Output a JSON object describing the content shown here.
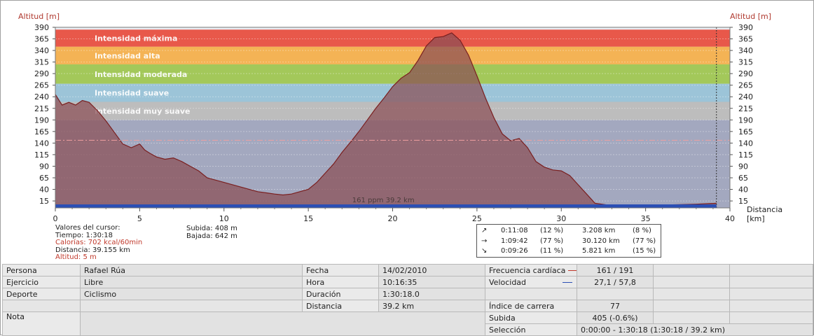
{
  "chart_data": {
    "type": "area",
    "y_axis_title_left": "Altitud [m]",
    "y_axis_title_right": "Altitud [m]",
    "x_axis_title": "Distancia\n[km]",
    "xlim": [
      0,
      40
    ],
    "ylim": [
      0,
      390
    ],
    "x_ticks": [
      0,
      5,
      10,
      15,
      20,
      25,
      30,
      35,
      40
    ],
    "y_ticks": [
      15,
      40,
      65,
      90,
      115,
      140,
      165,
      190,
      215,
      240,
      265,
      290,
      315,
      340,
      365,
      390
    ],
    "zones": [
      {
        "label": "Intensidad máxima",
        "from": 348,
        "to": 385,
        "color": "#e8584a"
      },
      {
        "label": "Intensidad alta",
        "from": 310,
        "to": 348,
        "color": "#f4b355"
      },
      {
        "label": "Intensidad moderada",
        "from": 268,
        "to": 310,
        "color": "#a3c85a"
      },
      {
        "label": "Intensidad suave",
        "from": 229,
        "to": 268,
        "color": "#9cc4d8"
      },
      {
        "label": "Intensidad muy suave",
        "from": 190,
        "to": 229,
        "color": "#bdbdbd"
      }
    ],
    "below_zone_color": "#a3a8bf",
    "avg_hr_line_value": 146,
    "hr_annotation": "161 ppm 39.2 km",
    "series": [
      {
        "x": [
          0,
          0.4,
          0.8,
          1.2,
          1.6,
          2.0,
          2.5,
          3.0,
          3.5,
          4.0,
          4.5,
          5.0,
          5.3,
          5.6,
          6.0,
          6.5,
          7.0,
          7.5,
          8.0,
          8.5,
          9.0,
          10.0,
          11.0,
          12.0,
          13.0,
          13.5,
          14.0,
          14.5,
          15.0,
          15.5,
          16.0,
          16.5,
          17.0,
          17.5,
          18.0,
          18.5,
          19.0,
          19.5,
          20.0,
          20.5,
          21.0,
          21.5,
          22.0,
          22.5,
          23.0,
          23.5,
          24.0,
          24.5,
          25.0,
          25.5,
          26.0,
          26.5,
          27.0,
          27.5,
          28.0,
          28.5,
          29.0,
          29.5,
          30.0,
          30.5,
          31.0,
          31.5,
          32.0,
          33.0,
          34.0,
          35.0,
          36.0,
          37.0,
          38.0,
          39.2
        ],
        "y": [
          245,
          222,
          228,
          222,
          232,
          228,
          210,
          188,
          163,
          138,
          130,
          138,
          125,
          118,
          110,
          105,
          108,
          100,
          90,
          80,
          65,
          55,
          45,
          35,
          30,
          28,
          30,
          35,
          40,
          55,
          75,
          95,
          120,
          142,
          165,
          190,
          215,
          238,
          262,
          280,
          292,
          318,
          350,
          368,
          370,
          378,
          362,
          330,
          285,
          238,
          195,
          160,
          145,
          150,
          130,
          100,
          88,
          82,
          80,
          70,
          50,
          30,
          10,
          5,
          4,
          5,
          6,
          7,
          8,
          10
        ]
      }
    ]
  },
  "cursor": {
    "title": "Valores del cursor:",
    "time": "Tiempo: 1:30:18",
    "calories": "Calorías: 702 kcal/60min",
    "distance": "Distancia: 39.155 km",
    "altitude": "Altitud: 5 m"
  },
  "climb": {
    "up": "Subida: 408 m",
    "down": "Bajada: 642 m"
  },
  "stats": [
    {
      "icon": "arrow-up-right-icon",
      "glyph": "↗",
      "time": "0:11:08",
      "pct1": "(12 %)",
      "dist": "3.208 km",
      "pct2": "(8 %)"
    },
    {
      "icon": "arrow-right-icon",
      "glyph": "→",
      "time": "1:09:42",
      "pct1": "(77 %)",
      "dist": "30.120 km",
      "pct2": "(77 %)"
    },
    {
      "icon": "arrow-down-right-icon",
      "glyph": "↘",
      "time": "0:09:26",
      "pct1": "(11 %)",
      "dist": "5.821 km",
      "pct2": "(15 %)"
    }
  ],
  "info": {
    "persona_label": "Persona",
    "persona": "Rafael Rúa",
    "ejercicio_label": "Ejercicio",
    "ejercicio": "Libre",
    "deporte_label": "Deporte",
    "deporte": "Ciclismo",
    "nota_label": "Nota",
    "fecha_label": "Fecha",
    "fecha": "14/02/2010",
    "hora_label": "Hora",
    "hora": "10:16:35",
    "duracion_label": "Duración",
    "duracion": "1:30:18.0",
    "distancia_label": "Distancia",
    "distancia": "39.2 km",
    "fc_label": "Frecuencia cardíaca",
    "fc": "161 / 191",
    "fc_color": "#c0392b",
    "vel_label": "Velocidad",
    "vel": "27,1 / 57,8",
    "vel_color": "#2b4fb5",
    "indice_label": "Índice de carrera",
    "indice": "77",
    "subida_label": "Subida",
    "subida": "405 (-0.6%)",
    "seleccion_label": "Selección",
    "seleccion": "0:00:00 - 1:30:18 (1:30:18 / 39.2 km)"
  }
}
